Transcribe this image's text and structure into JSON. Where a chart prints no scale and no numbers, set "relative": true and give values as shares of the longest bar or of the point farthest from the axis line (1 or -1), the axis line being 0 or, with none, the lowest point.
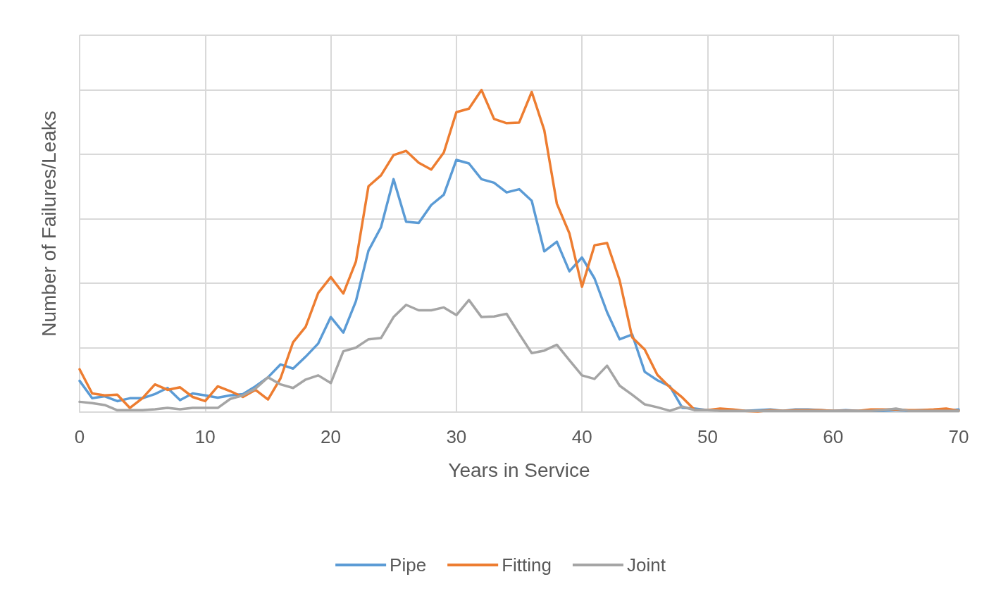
{
  "chart_data": {
    "type": "line",
    "relative": true,
    "xlabel": "Years in Service",
    "ylabel": "Number of Failures/Leaks",
    "x": [
      0,
      1,
      2,
      3,
      4,
      5,
      6,
      7,
      8,
      9,
      10,
      11,
      12,
      13,
      14,
      15,
      16,
      17,
      18,
      19,
      20,
      21,
      22,
      23,
      24,
      25,
      26,
      27,
      28,
      29,
      30,
      31,
      32,
      33,
      34,
      35,
      36,
      37,
      38,
      39,
      40,
      41,
      42,
      43,
      44,
      45,
      46,
      47,
      48,
      49,
      50,
      51,
      52,
      53,
      54,
      55,
      56,
      57,
      58,
      59,
      60,
      61,
      62,
      63,
      64,
      65,
      66,
      67,
      68,
      69,
      70
    ],
    "xlim": [
      0,
      70
    ],
    "xticks": [
      0,
      10,
      20,
      30,
      40,
      50,
      60,
      70
    ],
    "grid": true,
    "legend": "bottom",
    "marker": "none",
    "line_style": "solid",
    "series": [
      {
        "name": "Pipe",
        "color": "#5b9bd5",
        "values": [
          0.097,
          0.043,
          0.049,
          0.034,
          0.043,
          0.043,
          0.056,
          0.075,
          0.037,
          0.058,
          0.052,
          0.045,
          0.052,
          0.056,
          0.08,
          0.108,
          0.148,
          0.135,
          0.172,
          0.213,
          0.295,
          0.247,
          0.344,
          0.501,
          0.574,
          0.723,
          0.591,
          0.587,
          0.643,
          0.675,
          0.783,
          0.772,
          0.723,
          0.712,
          0.682,
          0.692,
          0.656,
          0.499,
          0.529,
          0.437,
          0.48,
          0.415,
          0.31,
          0.226,
          0.241,
          0.125,
          0.099,
          0.08,
          0.013,
          0.011,
          0.006,
          0.006,
          0.004,
          0.004,
          0.006,
          0.008,
          0.004,
          0.008,
          0.008,
          0.006,
          0.004,
          0.006,
          0.004,
          0.004,
          0.004,
          0.006,
          0.004,
          0.006,
          0.006,
          0.004,
          0.008
        ]
      },
      {
        "name": "Fitting",
        "color": "#ed7d31",
        "values": [
          0.133,
          0.058,
          0.052,
          0.054,
          0.013,
          0.043,
          0.086,
          0.069,
          0.077,
          0.047,
          0.034,
          0.08,
          0.065,
          0.047,
          0.069,
          0.039,
          0.105,
          0.217,
          0.265,
          0.37,
          0.419,
          0.368,
          0.467,
          0.701,
          0.735,
          0.798,
          0.811,
          0.774,
          0.753,
          0.806,
          0.931,
          0.942,
          1,
          0.91,
          0.897,
          0.899,
          0.994,
          0.875,
          0.647,
          0.555,
          0.389,
          0.518,
          0.525,
          0.409,
          0.232,
          0.194,
          0.116,
          0.077,
          0.045,
          0.006,
          0.006,
          0.011,
          0.008,
          0.004,
          0.002,
          0.006,
          0.004,
          0.006,
          0.006,
          0.006,
          0.004,
          0.004,
          0.004,
          0.008,
          0.008,
          0.008,
          0.006,
          0.006,
          0.008,
          0.011,
          0.004
        ]
      },
      {
        "name": "Joint",
        "color": "#a5a5a5",
        "values": [
          0.032,
          0.028,
          0.022,
          0.006,
          0.006,
          0.006,
          0.009,
          0.013,
          0.009,
          0.013,
          0.013,
          0.013,
          0.041,
          0.052,
          0.073,
          0.108,
          0.086,
          0.075,
          0.101,
          0.114,
          0.09,
          0.189,
          0.2,
          0.226,
          0.23,
          0.295,
          0.333,
          0.316,
          0.316,
          0.325,
          0.301,
          0.348,
          0.295,
          0.297,
          0.305,
          0.243,
          0.183,
          0.191,
          0.209,
          0.161,
          0.114,
          0.103,
          0.144,
          0.082,
          0.054,
          0.024,
          0.015,
          0.004,
          0.017,
          0.006,
          0.006,
          0.004,
          0.004,
          0.004,
          0.004,
          0.004,
          0.004,
          0.004,
          0.004,
          0.004,
          0.004,
          0.004,
          0.004,
          0.004,
          0.006,
          0.011,
          0.004,
          0.004,
          0.004,
          0.004,
          0.004
        ]
      }
    ]
  }
}
